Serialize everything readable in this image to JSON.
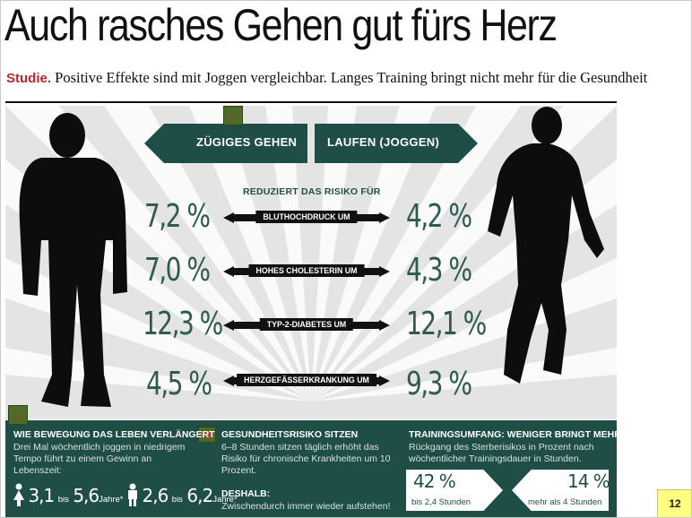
{
  "headline": "Auch rasches Gehen gut fürs Herz",
  "subline": {
    "lead": "Studie.",
    "text": " Positive Effekte sind mit Joggen vergleichbar. Langes Training bringt nicht mehr für die Gesundheit"
  },
  "header_arrows": {
    "left": "ZÜGIGES GEHEN",
    "right": "LAUFEN (JOGGEN)"
  },
  "risk_title": "REDUZIERT DAS RISIKO FÜR",
  "rows": [
    {
      "left": "7,2 %",
      "label": "BLUTHOCHDRUCK UM",
      "right": "4,2 %"
    },
    {
      "left": "7,0 %",
      "label": "HOHES CHOLESTERIN UM",
      "right": "4,3 %"
    },
    {
      "left": "12,3 %",
      "label": "TYP-2-DIABETES UM",
      "right": "12,1 %"
    },
    {
      "left": "4,5 %",
      "label": "HERZGEFÄSSERKRANKUNG UM",
      "right": "9,3 %"
    }
  ],
  "bottom": {
    "col1": {
      "title": "WIE BEWEGUNG DAS LEBEN VERLÄNGERT",
      "text": "Drei Mal wöchentlich joggen in niedrigem Tempo führt zu einem Gewinn an Lebenszeit:",
      "f_from": "3,1",
      "f_bis": "bis",
      "f_to": "5,6",
      "f_unit": "Jahre*",
      "m_from": "2,6",
      "m_bis": "bis",
      "m_to": "6,2",
      "m_unit": "Jahre*"
    },
    "col2": {
      "title": "GESUNDHEITSRISIKO SITZEN",
      "text": "6–8 Stunden sitzen täglich erhöht das Risiko für chronische Krankheiten um 10 Prozent.",
      "title2": "DESHALB:",
      "text2": "Zwischendurch immer wieder aufstehen!"
    },
    "col3": {
      "title": "TRAININGSUMFANG: WENIGER BRINGT MEHR",
      "text": "Rückgang des Sterberisikos in Prozent nach wöchentlicher Trainingsdauer in Stunden.",
      "box1_pct": "42 %",
      "box1_sub": "bis 2,4 Stunden",
      "box2_pct": "14 %",
      "box2_sub": "mehr als 4 Stunden"
    }
  },
  "marker_glyph": "↓",
  "marker_glyph_right": "➡",
  "page_number": "12",
  "colors": {
    "panel": "#1f4e46",
    "marker": "#4e6b2a",
    "accent_red": "#c0242a",
    "page_badge": "#ffff80"
  }
}
